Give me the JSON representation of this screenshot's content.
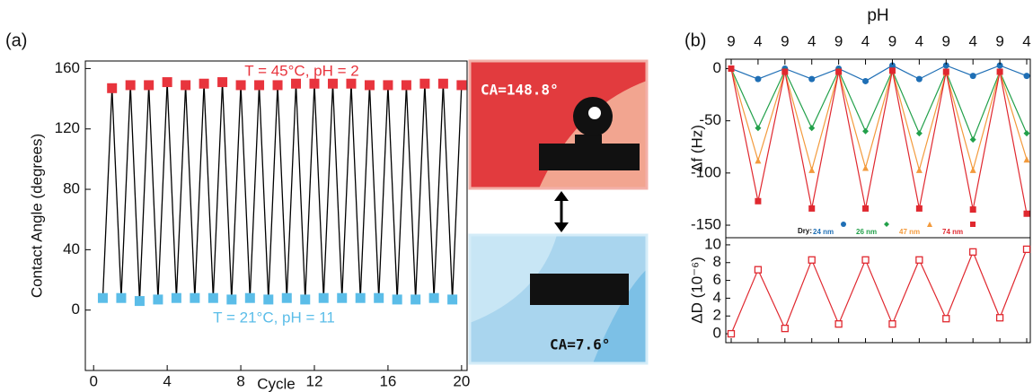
{
  "panel_labels": [
    "(a)",
    "(b)"
  ],
  "images": [
    {
      "caption": "CA=148.8°"
    },
    {
      "caption": "CA=7.6°"
    }
  ],
  "chart_data": [
    {
      "type": "scatter",
      "xlabel": "Cycle",
      "ylabel": "Contact Angle (degrees)",
      "xlim": [
        -0.45,
        20.3
      ],
      "ylim": [
        -40,
        165
      ],
      "xticks": [
        0,
        4,
        8,
        12,
        16,
        20
      ],
      "yticks": [
        0,
        40,
        80,
        120,
        160
      ],
      "line_color": "#000000",
      "annotations": [
        "T = 45°C, pH = 2",
        "T = 21°C, pH = 11"
      ],
      "series": [
        {
          "color": "#e8343d",
          "x": [
            1,
            2,
            3,
            4,
            5,
            6,
            7,
            8,
            9,
            10,
            11,
            12,
            13,
            14,
            15,
            16,
            17,
            18,
            19,
            20
          ],
          "values": [
            147,
            149,
            149,
            151,
            149,
            150,
            151,
            149,
            149,
            149,
            150,
            150,
            150,
            150,
            149,
            149,
            149,
            150,
            150,
            149
          ]
        },
        {
          "color": "#5bbde8",
          "x": [
            0.5,
            1.5,
            2.5,
            3.5,
            4.5,
            5.5,
            6.5,
            7.5,
            8.5,
            9.5,
            10.5,
            11.5,
            12.5,
            13.5,
            14.5,
            15.5,
            16.5,
            17.5,
            18.5,
            19.5
          ],
          "values": [
            8,
            8,
            6,
            7,
            8,
            8,
            8,
            7,
            8,
            7,
            8,
            7,
            8,
            8,
            8,
            8,
            7,
            7,
            8,
            7
          ]
        }
      ]
    },
    {
      "type": "line",
      "xlabel": "pH",
      "ylabel": "Δf (Hz)",
      "categories": [
        9,
        4,
        9,
        4,
        9,
        4,
        9,
        4,
        9,
        4,
        9,
        4
      ],
      "ylim": [
        -162,
        9
      ],
      "yticks": [
        0,
        -50,
        -100,
        -150
      ],
      "legend_title": "Dry:",
      "series": [
        {
          "name": "24 nm",
          "color": "#1f6fb5",
          "marker": "circle",
          "values": [
            0,
            -10,
            0,
            -10,
            0,
            -12,
            3,
            -10,
            3,
            -7,
            3,
            -7
          ]
        },
        {
          "name": "26 nm",
          "color": "#22a04a",
          "marker": "diamond",
          "values": [
            0,
            -57,
            -2,
            -57,
            -2,
            -60,
            -2,
            -62,
            -3,
            -68,
            -3,
            -62
          ]
        },
        {
          "name": "47 nm",
          "color": "#f39a3c",
          "marker": "triangle",
          "values": [
            0,
            -88,
            -3,
            -97,
            -3,
            -95,
            -2,
            -97,
            -4,
            -97,
            -3,
            -87
          ]
        },
        {
          "name": "74 nm",
          "color": "#e0282f",
          "marker": "square",
          "values": [
            0,
            -127,
            -3,
            -134,
            -3,
            -134,
            -2,
            -134,
            -3,
            -135,
            -3,
            -139
          ]
        }
      ]
    },
    {
      "type": "line",
      "ylabel": "ΔD (10⁻⁶)",
      "ylim": [
        -1,
        10.8
      ],
      "yticks": [
        0,
        2,
        4,
        6,
        8,
        10
      ],
      "series": [
        {
          "color": "#e0282f",
          "marker": "square-open",
          "values": [
            0,
            7.2,
            0.6,
            8.3,
            1.1,
            8.3,
            1.1,
            8.3,
            1.7,
            9.2,
            1.8,
            9.5
          ]
        }
      ]
    }
  ]
}
